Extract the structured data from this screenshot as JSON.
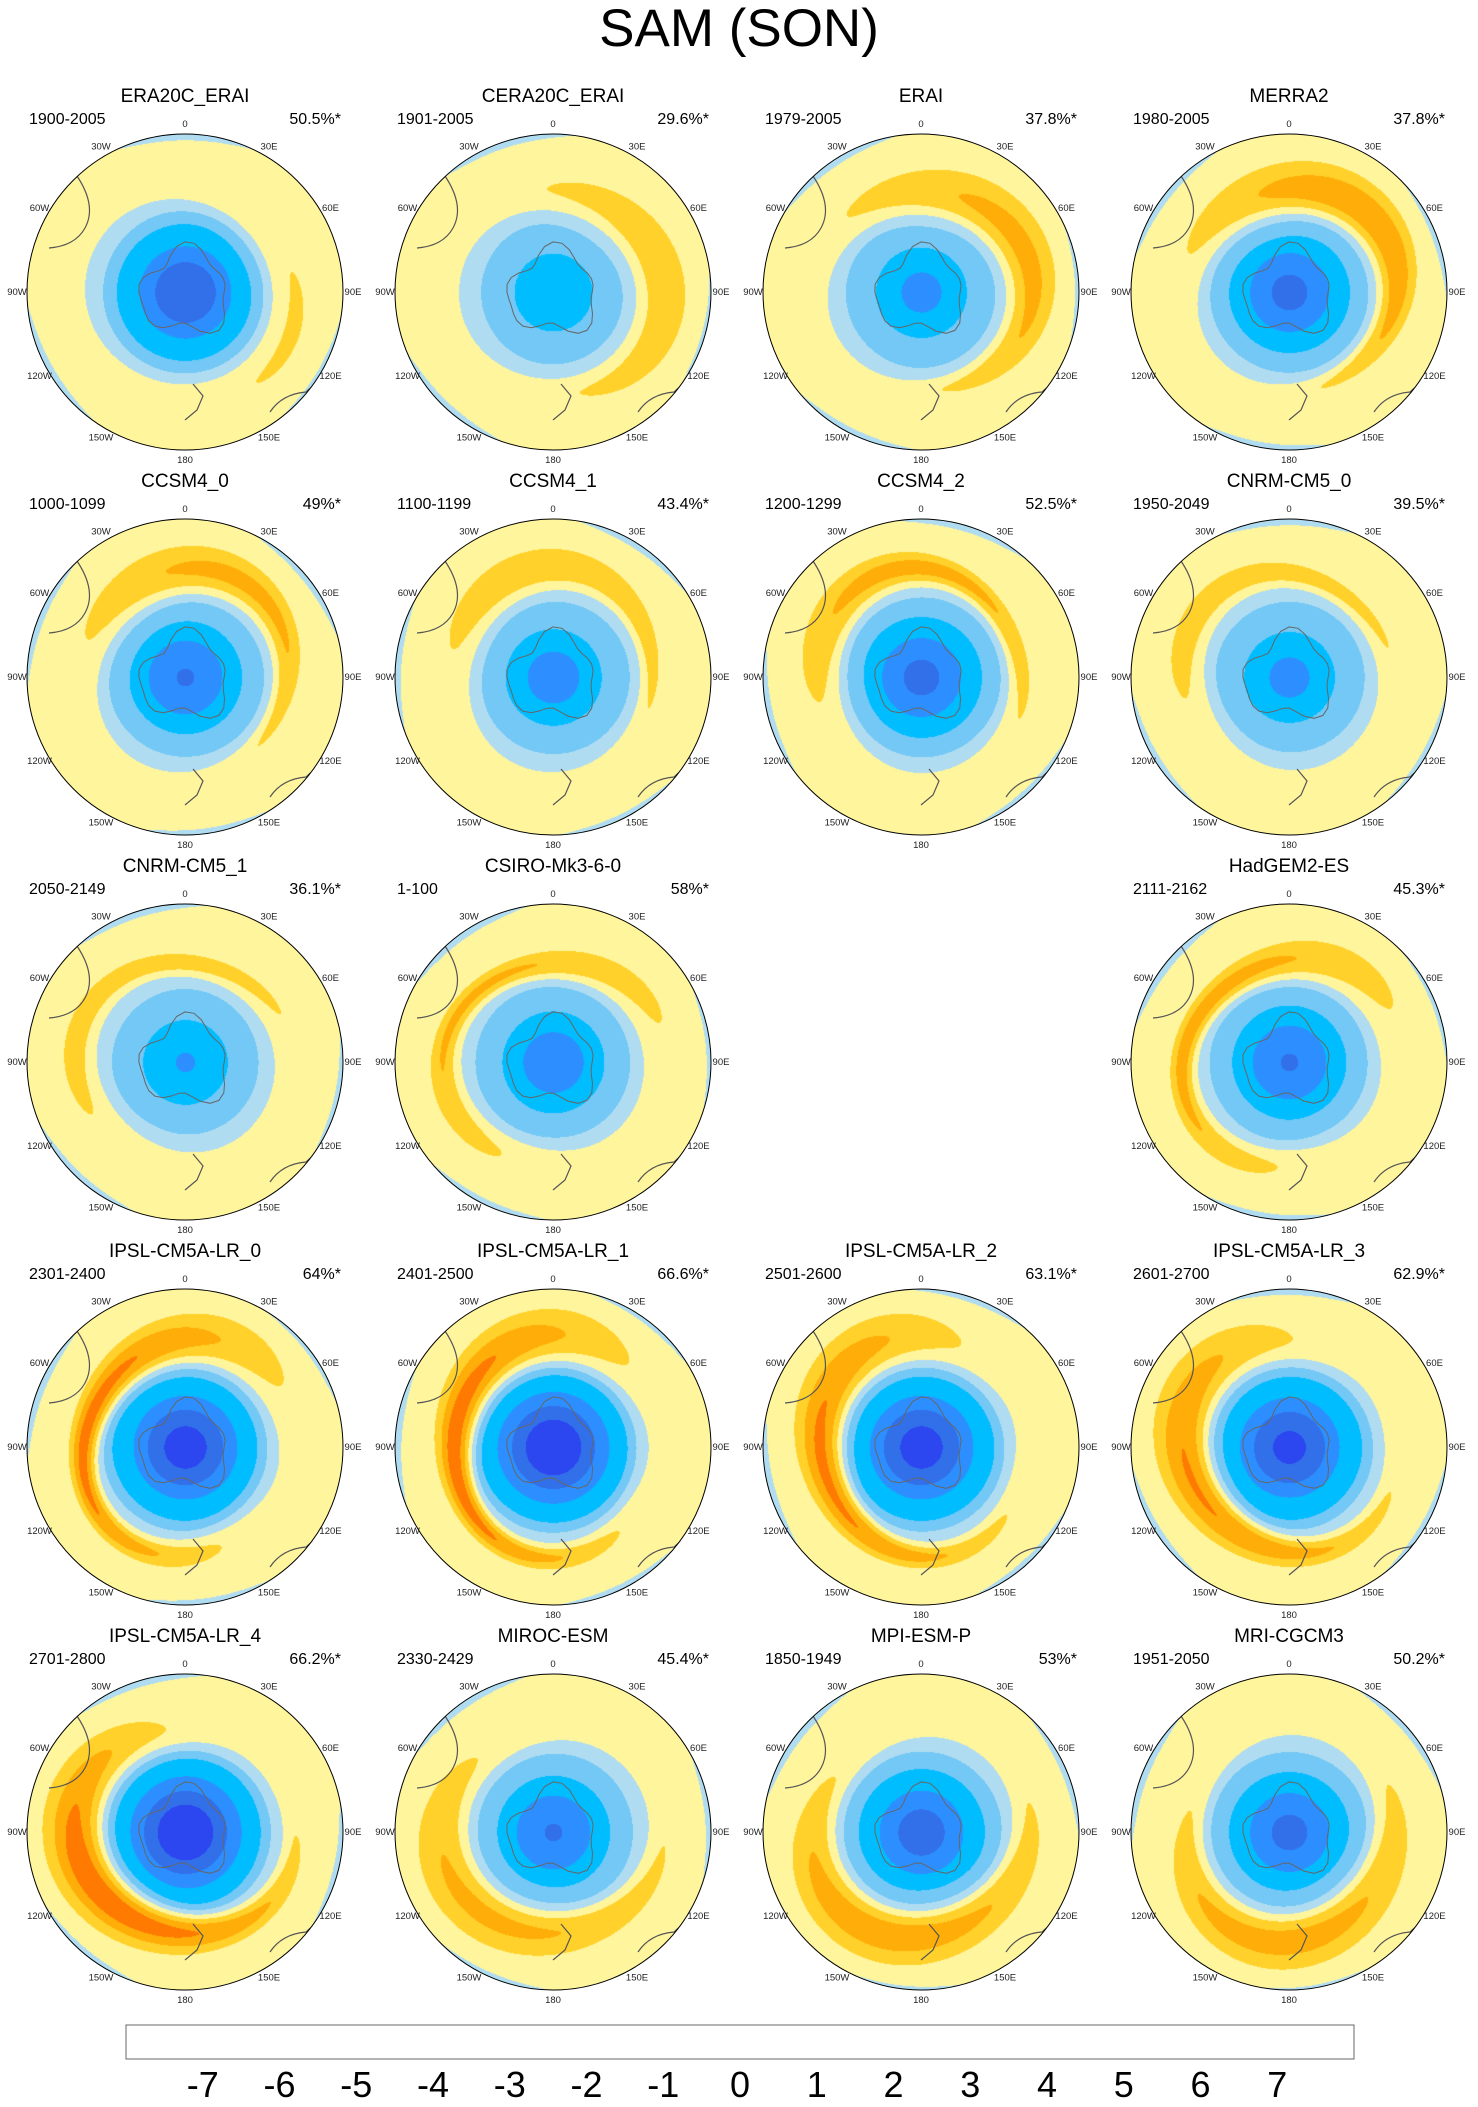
{
  "chart_data": {
    "type": "map",
    "title": "SAM (SON)",
    "projection": "south polar stereographic",
    "longitude_labels": [
      "0",
      "30E",
      "60E",
      "90E",
      "120E",
      "150E",
      "180",
      "150W",
      "120W",
      "90W",
      "60W",
      "30W"
    ],
    "colorbar": {
      "labels": [
        "-7",
        "-6",
        "-5",
        "-4",
        "-3",
        "-2",
        "-1",
        "0",
        "1",
        "2",
        "3",
        "4",
        "5",
        "6",
        "7"
      ],
      "colors": [
        "#8a1ef5",
        "#1a00ff",
        "#2c46f0",
        "#3270ea",
        "#2d8fff",
        "#00bdff",
        "#73c8f5",
        "#b0dcf2",
        "#fff59d",
        "#ffd12a",
        "#ffad08",
        "#ff7a00",
        "#ff3000",
        "#e40000",
        "#cc1e1e",
        "#ffb7b7"
      ]
    },
    "panels": [
      {
        "title": "ERA20C_ERAI",
        "period": "1900-2005",
        "percent": "50.5%*",
        "row": 0,
        "col": 0,
        "ring": [
          -5.2,
          -2.4,
          1.0
        ]
      },
      {
        "title": "CERA20C_ERAI",
        "period": "1901-2005",
        "percent": "29.6%*",
        "row": 0,
        "col": 1,
        "ring": [
          -3.2,
          -1.6,
          1.5
        ]
      },
      {
        "title": "ERAI",
        "period": "1979-2005",
        "percent": "37.8%*",
        "row": 0,
        "col": 2,
        "ring": [
          -3.6,
          -1.8,
          2.2
        ]
      },
      {
        "title": "MERRA2",
        "period": "1980-2005",
        "percent": "37.8%*",
        "row": 0,
        "col": 3,
        "ring": [
          -4.6,
          -2.2,
          2.8
        ]
      },
      {
        "title": "CCSM4_0",
        "period": "1000-1099",
        "percent": "49%*",
        "row": 1,
        "col": 0,
        "ring": [
          -4.4,
          -2.0,
          2.2
        ]
      },
      {
        "title": "CCSM4_1",
        "period": "1100-1199",
        "percent": "43.4%*",
        "row": 1,
        "col": 1,
        "ring": [
          -3.8,
          -1.8,
          1.8
        ]
      },
      {
        "title": "CCSM4_2",
        "period": "1200-1299",
        "percent": "52.5%*",
        "row": 1,
        "col": 2,
        "ring": [
          -4.6,
          -2.2,
          2.4
        ]
      },
      {
        "title": "CNRM-CM5_0",
        "period": "1950-2049",
        "percent": "39.5%*",
        "row": 1,
        "col": 3,
        "ring": [
          -3.6,
          -1.8,
          1.6
        ]
      },
      {
        "title": "CNRM-CM5_1",
        "period": "2050-2149",
        "percent": "36.1%*",
        "row": 2,
        "col": 0,
        "ring": [
          -3.4,
          -1.6,
          1.6
        ]
      },
      {
        "title": "CSIRO-Mk3-6-0",
        "period": "1-100",
        "percent": "58%*",
        "row": 2,
        "col": 1,
        "ring": [
          -4.0,
          -2.0,
          2.2
        ]
      },
      {
        "title": "HadGEM2-ES",
        "period": "2111-2162",
        "percent": "45.3%*",
        "row": 2,
        "col": 3,
        "ring": [
          -4.4,
          -2.2,
          2.6
        ]
      },
      {
        "title": "IPSL-CM5A-LR_0",
        "period": "2301-2400",
        "percent": "64%*",
        "row": 3,
        "col": 0,
        "ring": [
          -5.8,
          -2.8,
          3.6
        ]
      },
      {
        "title": "IPSL-CM5A-LR_1",
        "period": "2401-2500",
        "percent": "66.6%*",
        "row": 3,
        "col": 1,
        "ring": [
          -6.2,
          -3.0,
          3.8
        ]
      },
      {
        "title": "IPSL-CM5A-LR_2",
        "period": "2501-2600",
        "percent": "63.1%*",
        "row": 3,
        "col": 2,
        "ring": [
          -5.8,
          -2.8,
          3.4
        ]
      },
      {
        "title": "IPSL-CM5A-LR_3",
        "period": "2601-2700",
        "percent": "62.9%*",
        "row": 3,
        "col": 3,
        "ring": [
          -5.6,
          -2.8,
          3.2
        ]
      },
      {
        "title": "IPSL-CM5A-LR_4",
        "period": "2701-2800",
        "percent": "66.2%*",
        "row": 4,
        "col": 0,
        "ring": [
          -6.2,
          -3.0,
          3.8
        ]
      },
      {
        "title": "MIROC-ESM",
        "period": "2330-2429",
        "percent": "45.4%*",
        "row": 4,
        "col": 1,
        "ring": [
          -4.4,
          -2.0,
          2.2
        ]
      },
      {
        "title": "MPI-ESM-P",
        "period": "1850-1949",
        "percent": "53%*",
        "row": 4,
        "col": 2,
        "ring": [
          -4.8,
          -2.2,
          2.6
        ]
      },
      {
        "title": "MRI-CGCM3",
        "period": "1951-2050",
        "percent": "50.2%*",
        "row": 4,
        "col": 3,
        "ring": [
          -4.6,
          -2.2,
          2.4
        ]
      }
    ]
  }
}
